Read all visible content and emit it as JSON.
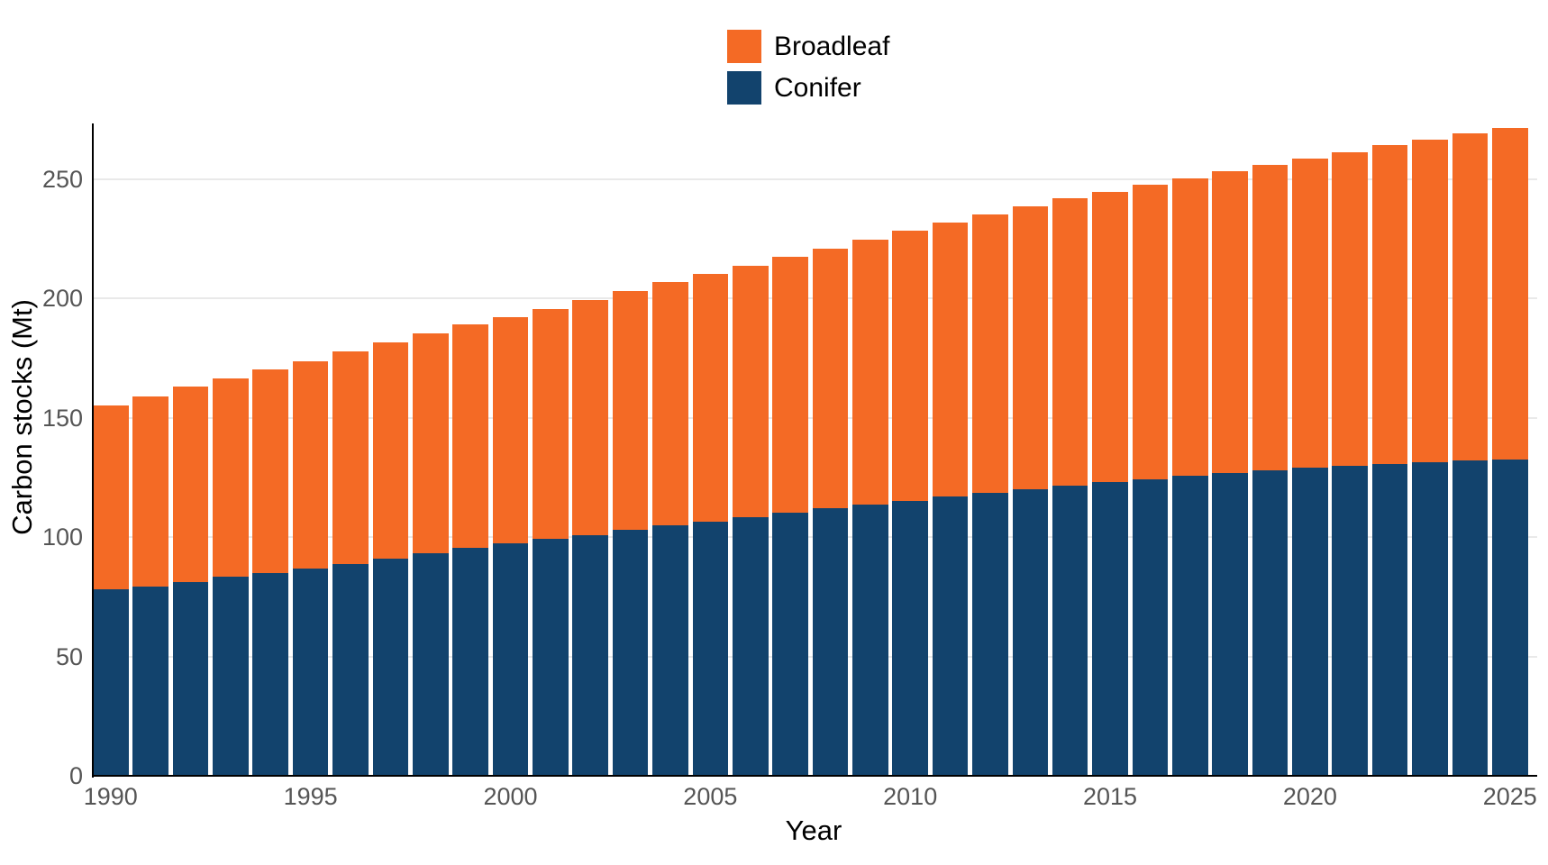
{
  "colors": {
    "background": "#ffffff",
    "gridline": "#e9e9e9",
    "axis_line": "#000000",
    "tick_label": "#555555",
    "axis_title": "#000000",
    "legend_text": "#000000"
  },
  "legend": {
    "position": "top-center",
    "order": [
      "Broadleaf",
      "Conifer"
    ]
  },
  "chart_data": {
    "type": "bar",
    "stacked": true,
    "title": "",
    "xlabel": "Year",
    "ylabel": "Carbon stocks (Mt)",
    "x": [
      1990,
      1991,
      1992,
      1993,
      1994,
      1995,
      1996,
      1997,
      1998,
      1999,
      2000,
      2001,
      2002,
      2003,
      2004,
      2005,
      2006,
      2007,
      2008,
      2009,
      2010,
      2011,
      2012,
      2013,
      2014,
      2015,
      2016,
      2017,
      2018,
      2019,
      2020,
      2021,
      2022,
      2023,
      2024,
      2025
    ],
    "series": [
      {
        "name": "Conifer",
        "color": "#12436D",
        "values": [
          78.0,
          79.4,
          81.3,
          83.3,
          85.1,
          86.8,
          88.8,
          90.9,
          93.2,
          95.5,
          97.4,
          99.2,
          101.0,
          103.0,
          104.8,
          106.6,
          108.5,
          110.3,
          112.0,
          113.7,
          115.3,
          117.0,
          118.6,
          120.1,
          121.6,
          123.0,
          124.3,
          125.6,
          126.8,
          127.9,
          129.0,
          130.0,
          130.8,
          131.5,
          132.1,
          132.6
        ]
      },
      {
        "name": "Broadleaf",
        "color": "#F46A25",
        "values": [
          77.3,
          79.7,
          81.7,
          83.4,
          85.1,
          87.1,
          89.1,
          90.9,
          92.4,
          93.6,
          95.0,
          96.6,
          98.5,
          100.2,
          102.0,
          103.8,
          105.4,
          107.2,
          109.1,
          111.0,
          113.0,
          114.8,
          116.6,
          118.5,
          120.3,
          121.9,
          123.5,
          124.9,
          126.5,
          128.2,
          129.8,
          131.5,
          133.4,
          135.3,
          137.1,
          138.8
        ]
      }
    ],
    "stack_totals": [
      155.3,
      159.1,
      163.0,
      166.7,
      170.2,
      173.9,
      177.9,
      181.8,
      185.6,
      189.1,
      192.4,
      195.8,
      199.5,
      203.2,
      206.8,
      210.4,
      213.9,
      217.5,
      221.1,
      224.7,
      228.3,
      231.8,
      235.2,
      238.6,
      241.9,
      244.9,
      247.8,
      250.5,
      253.3,
      256.1,
      258.8,
      261.5,
      264.2,
      266.8,
      269.2,
      271.4
    ],
    "ylim": [
      0,
      273
    ],
    "yticks": [
      0,
      50,
      100,
      150,
      200,
      250
    ],
    "xticks": [
      1990,
      1995,
      2000,
      2005,
      2010,
      2015,
      2020,
      2025
    ],
    "grid": "horizontal major gridlines only, light gray, behind bars",
    "legend_position": "top-center"
  }
}
